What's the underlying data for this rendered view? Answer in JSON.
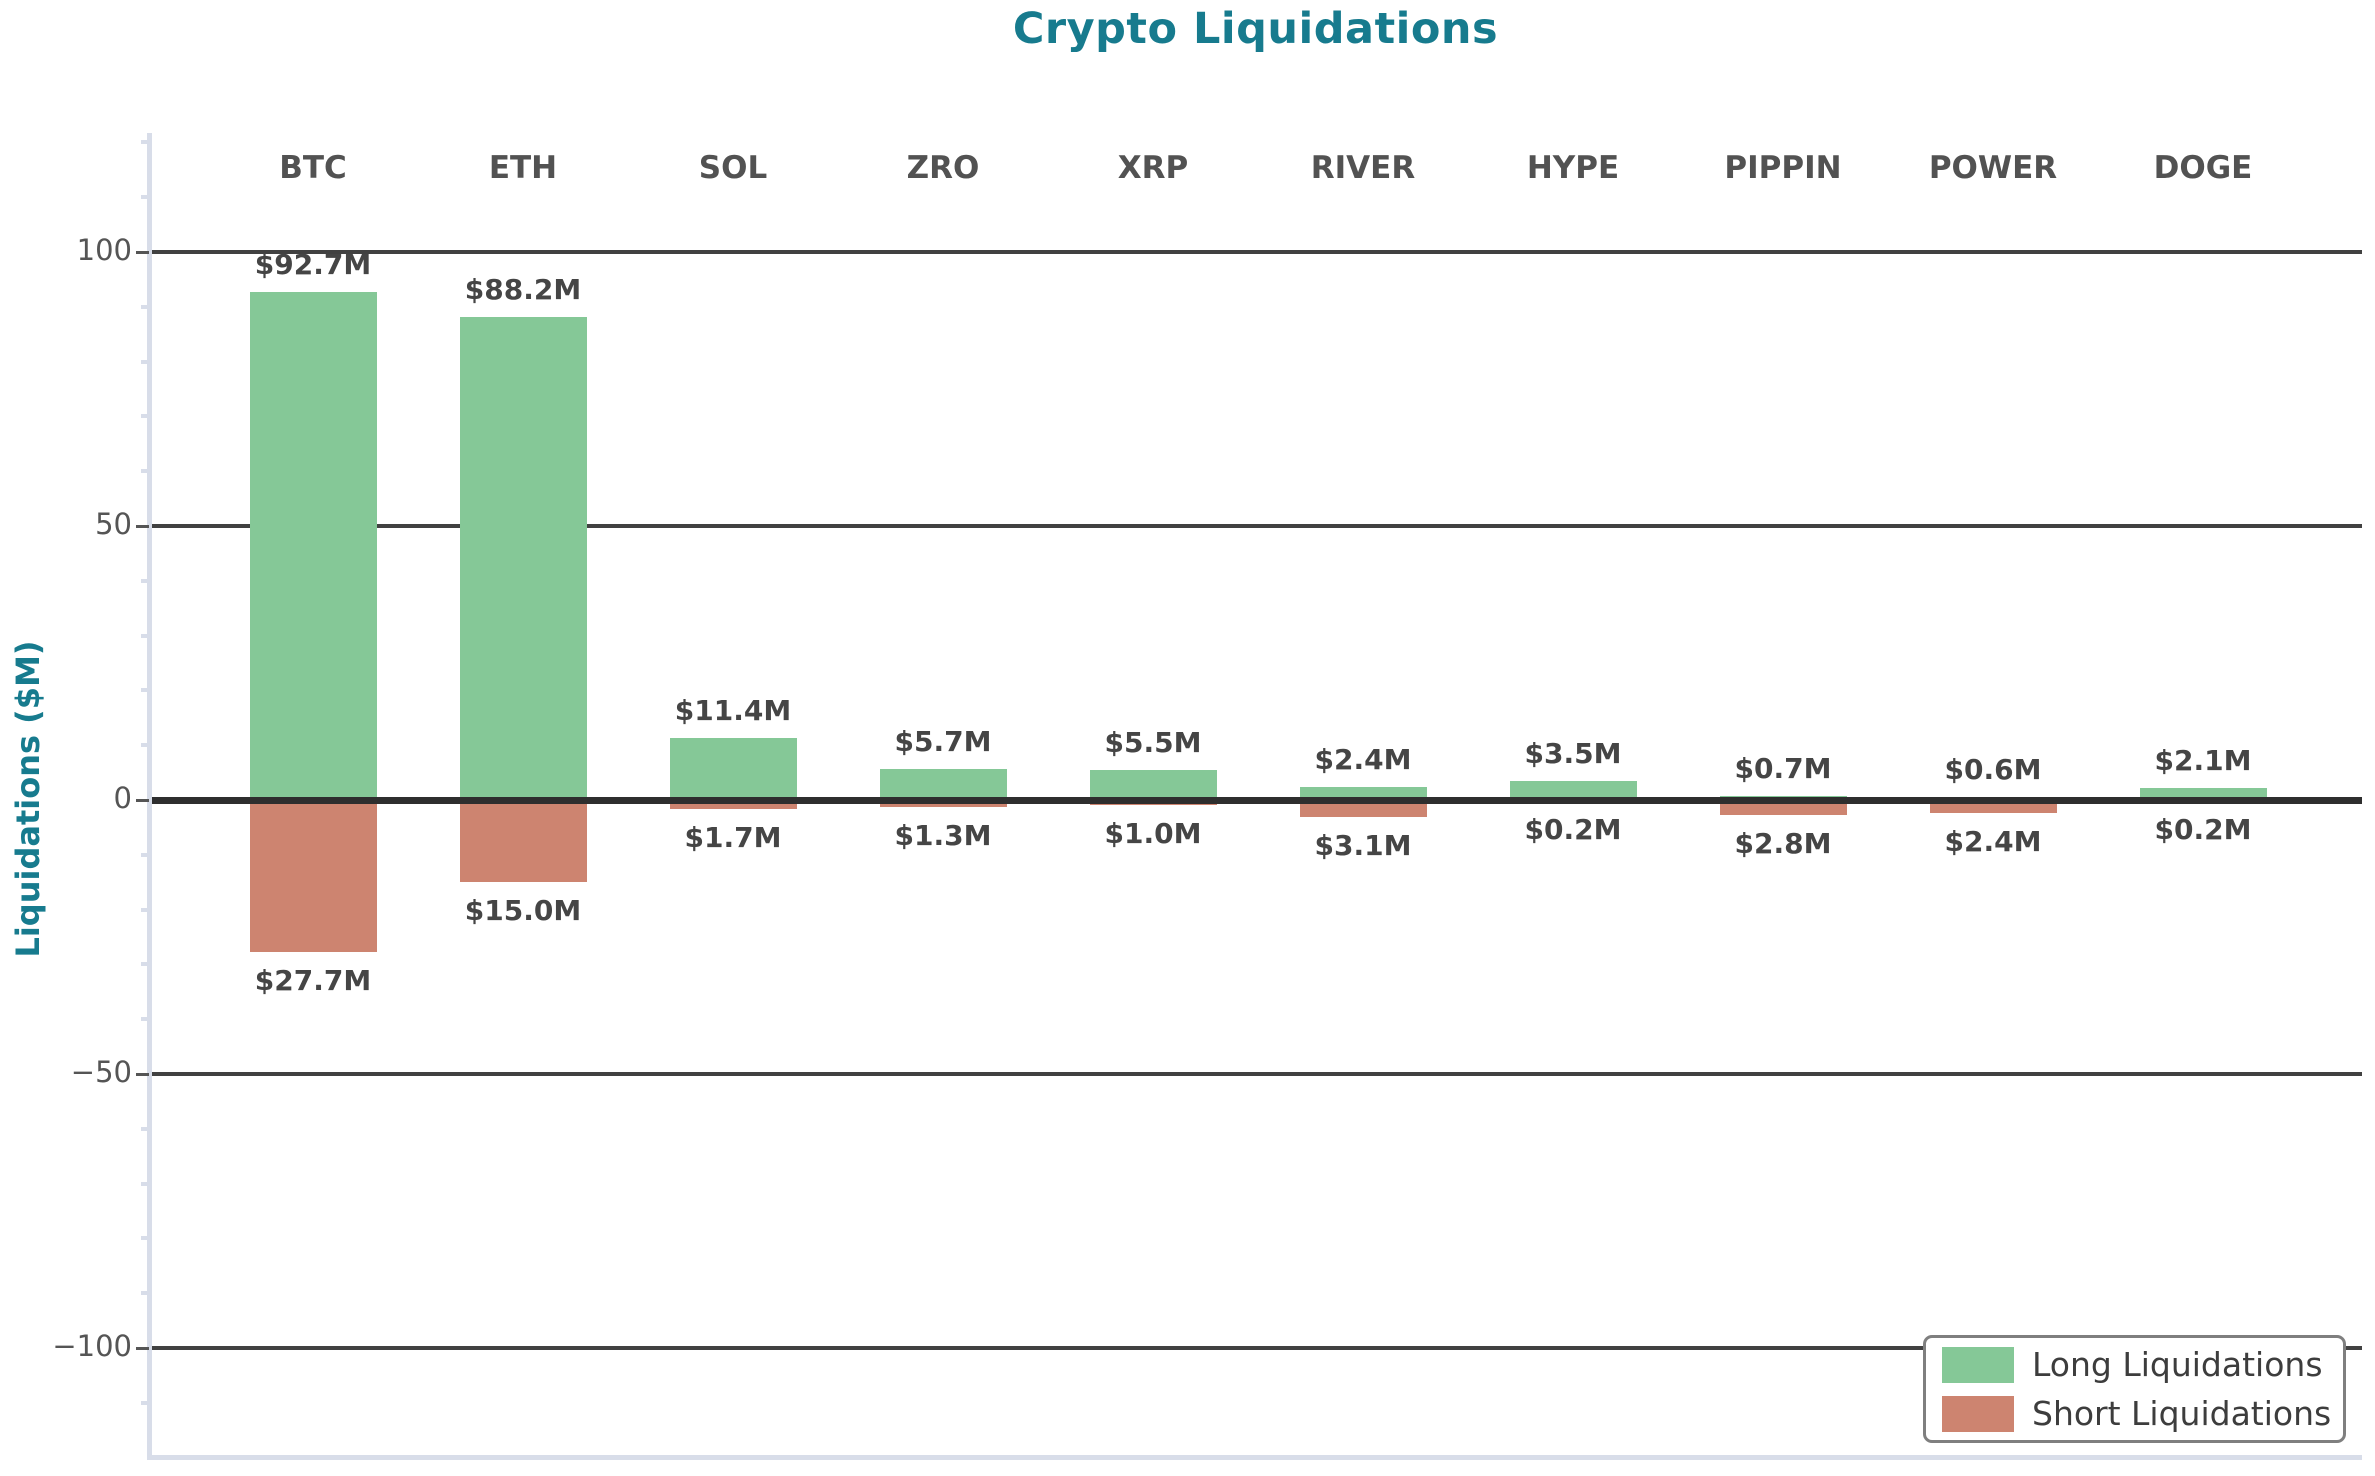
{
  "title": "Crypto Liquidations",
  "y_axis": {
    "label": "Liquidations ($M)",
    "ticks": [
      {
        "value": 100,
        "label": "100"
      },
      {
        "value": 50,
        "label": "50"
      },
      {
        "value": 0,
        "label": "0"
      },
      {
        "value": -50,
        "label": "−50"
      },
      {
        "value": -100,
        "label": "−100"
      }
    ]
  },
  "legend": {
    "items": [
      {
        "name": "long",
        "label": "Long Liquidations"
      },
      {
        "name": "short",
        "label": "Short Liquidations"
      }
    ]
  },
  "colors": {
    "accent_teal": "#177B8E",
    "long_green": "#85C897",
    "short_salmon": "#CD8470",
    "gridline": "#414141",
    "zero_line": "#2e2e2e",
    "spine": "#d8dde9",
    "label_text": "#454545"
  },
  "chart_data": {
    "type": "bar",
    "title": "Crypto Liquidations",
    "xlabel": "",
    "ylabel": "Liquidations ($M)",
    "categories": [
      "BTC",
      "ETH",
      "SOL",
      "ZRO",
      "XRP",
      "RIVER",
      "HYPE",
      "PIPPIN",
      "POWER",
      "DOGE"
    ],
    "series": [
      {
        "name": "Long Liquidations",
        "color": "#85C897",
        "values": [
          92.7,
          88.2,
          11.4,
          5.7,
          5.5,
          2.4,
          3.5,
          0.7,
          0.6,
          2.1
        ]
      },
      {
        "name": "Short Liquidations",
        "color": "#CD8470",
        "values": [
          -27.7,
          -15.0,
          -1.7,
          -1.3,
          -1.0,
          -3.1,
          -0.2,
          -2.8,
          -2.4,
          -0.2
        ]
      }
    ],
    "data_labels": {
      "long": [
        "$92.7M",
        "$88.2M",
        "$11.4M",
        "$5.7M",
        "$5.5M",
        "$2.4M",
        "$3.5M",
        "$0.7M",
        "$0.6M",
        "$2.1M"
      ],
      "short": [
        "$27.7M",
        "$15.0M",
        "$1.7M",
        "$1.3M",
        "$1.0M",
        "$3.1M",
        "$0.2M",
        "$2.8M",
        "$2.4M",
        "$0.2M"
      ]
    },
    "ylim": [
      -120,
      122
    ],
    "yticks": [
      100,
      50,
      0,
      -50,
      -100
    ],
    "minor_tick_step": 10,
    "grid": "horizontal-major",
    "legend_position": "lower right"
  }
}
